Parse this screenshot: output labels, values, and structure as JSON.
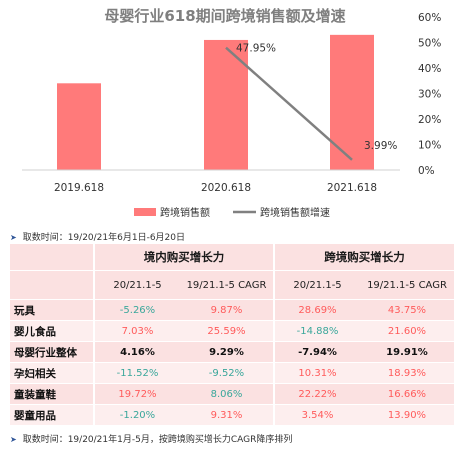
{
  "chart_data": {
    "type": "bar",
    "title": "母婴行业618期间跨境销售额及增速",
    "categories": [
      "2019.618",
      "2020.618",
      "2021.618"
    ],
    "series": [
      {
        "name": "跨境销售额",
        "type": "bar",
        "values": [
          0.34,
          0.51,
          0.53
        ],
        "color": "#ff7a7a"
      },
      {
        "name": "跨境销售额增速",
        "type": "line",
        "values": [
          null,
          0.4795,
          0.0399
        ],
        "labels": [
          "",
          "47.95%",
          "3.99%"
        ],
        "color": "#808080"
      }
    ],
    "y2_ticks": [
      "0%",
      "10%",
      "20%",
      "30%",
      "40%",
      "50%",
      "60%"
    ],
    "y2lim": [
      0,
      0.6
    ],
    "legend_position": "bottom"
  },
  "note_top": "取数时间：19/20/21年6月1日-6月20日",
  "note_bottom": "取数时间：19/20/21年1月-5月，按跨境购买增长力CAGR降序排列",
  "table": {
    "group_headers": [
      "境内购买增长力",
      "跨境购买增长力"
    ],
    "sub_headers": [
      "20/21.1-5",
      "19/21.1-5 CAGR",
      "20/21.1-5",
      "19/21.1-5 CAGR"
    ],
    "rows": [
      {
        "label": "玩具",
        "cells": [
          {
            "v": "-5.26%",
            "c": "neg"
          },
          {
            "v": "9.87%",
            "c": "pos"
          },
          {
            "v": "28.69%",
            "c": "pos"
          },
          {
            "v": "43.75%",
            "c": "pos"
          }
        ]
      },
      {
        "label": "婴儿食品",
        "cells": [
          {
            "v": "7.03%",
            "c": "pos"
          },
          {
            "v": "25.59%",
            "c": "pos"
          },
          {
            "v": "-14.88%",
            "c": "neg"
          },
          {
            "v": "21.60%",
            "c": "pos"
          }
        ]
      },
      {
        "label": "母婴行业整体",
        "bold": true,
        "cells": [
          {
            "v": "4.16%",
            "c": "neu"
          },
          {
            "v": "9.29%",
            "c": "neu"
          },
          {
            "v": "-7.94%",
            "c": "neu"
          },
          {
            "v": "19.91%",
            "c": "neu"
          }
        ]
      },
      {
        "label": "孕妇相关",
        "cells": [
          {
            "v": "-11.52%",
            "c": "neg"
          },
          {
            "v": "-9.52%",
            "c": "neg"
          },
          {
            "v": "10.31%",
            "c": "pos"
          },
          {
            "v": "18.93%",
            "c": "pos"
          }
        ]
      },
      {
        "label": "童装童鞋",
        "cells": [
          {
            "v": "19.72%",
            "c": "pos"
          },
          {
            "v": "8.06%",
            "c": "neg"
          },
          {
            "v": "22.22%",
            "c": "pos"
          },
          {
            "v": "16.66%",
            "c": "pos"
          }
        ]
      },
      {
        "label": "婴童用品",
        "cells": [
          {
            "v": "-1.20%",
            "c": "neg"
          },
          {
            "v": "9.31%",
            "c": "pos"
          },
          {
            "v": "3.54%",
            "c": "pos"
          },
          {
            "v": "13.90%",
            "c": "pos"
          }
        ]
      }
    ]
  }
}
